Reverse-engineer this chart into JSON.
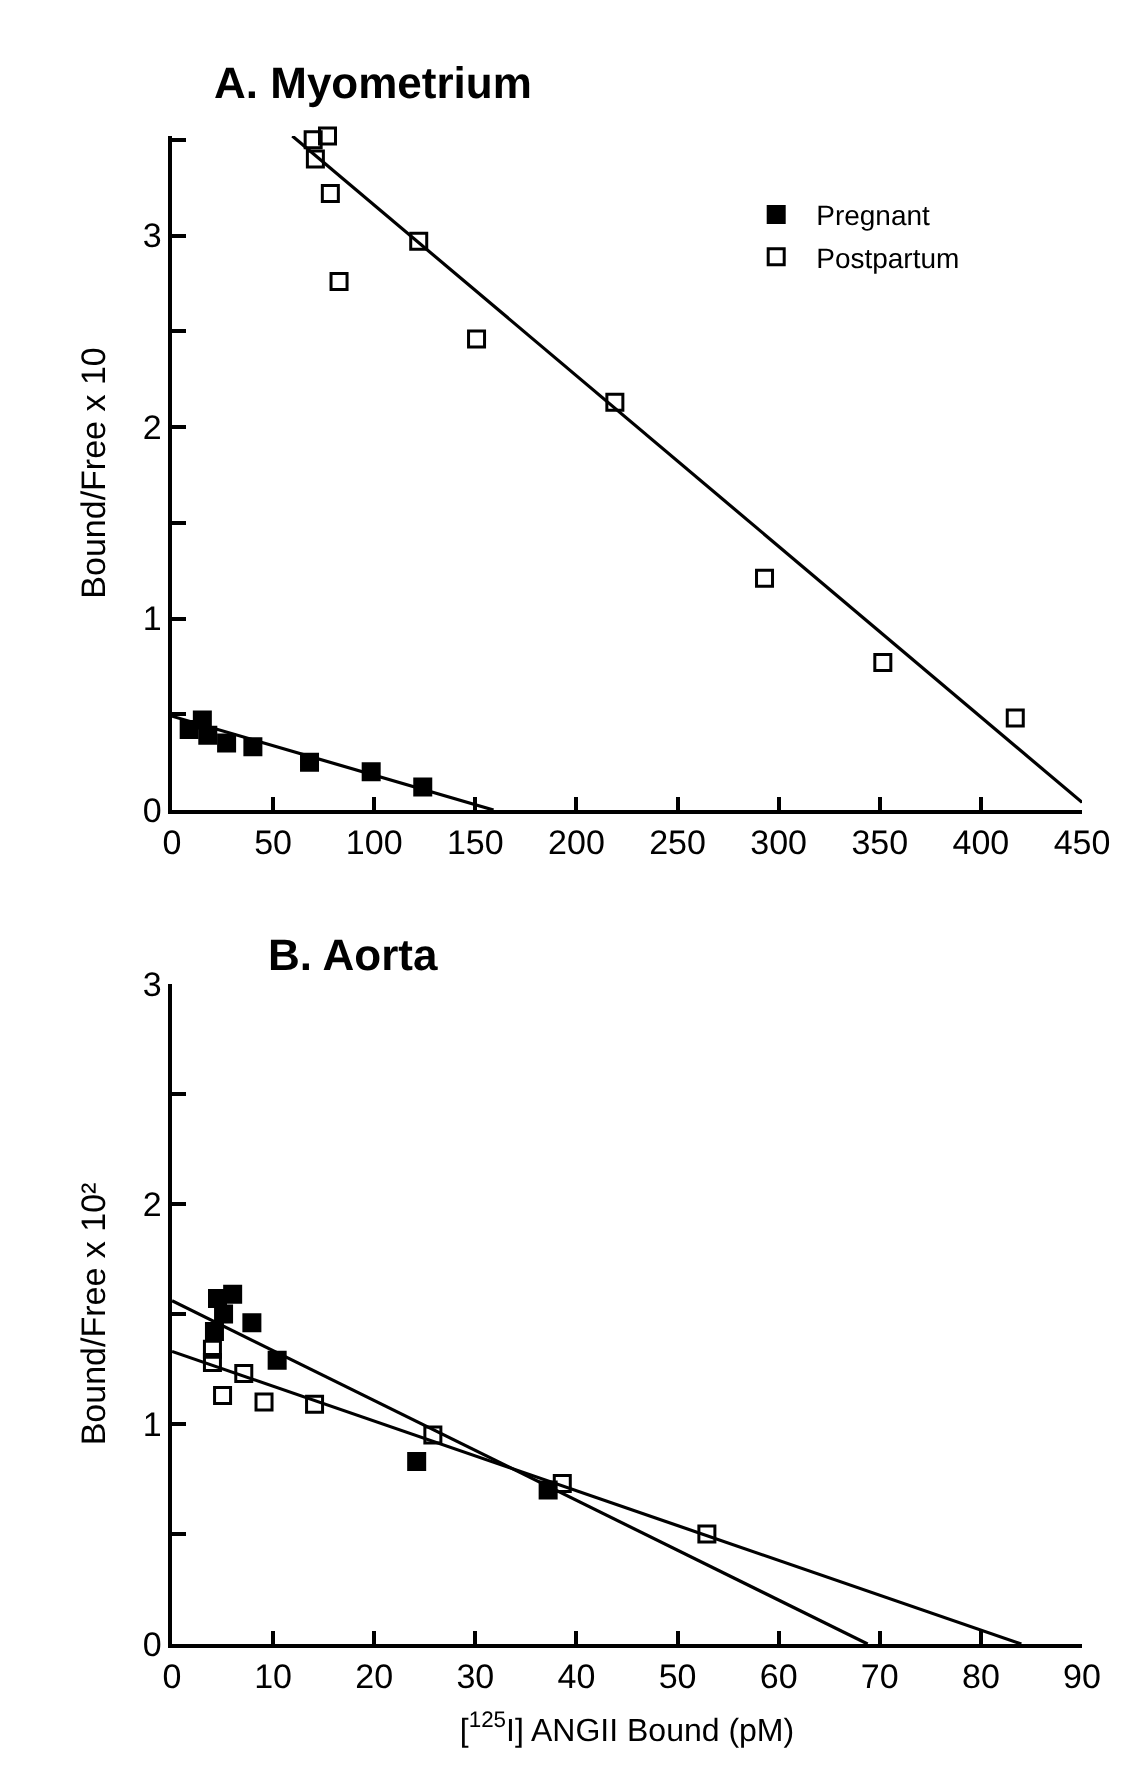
{
  "chart_data": [
    {
      "type": "scatter",
      "title": "A. Myometrium",
      "ylabel": "Bound/Free x 10",
      "xlim": [
        0,
        450
      ],
      "xticks": [
        0,
        50,
        100,
        150,
        200,
        250,
        300,
        350,
        400,
        450
      ],
      "ylim": [
        0,
        3.52
      ],
      "yticks": [
        0,
        {
          "value": 0.5,
          "label": null
        },
        1,
        {
          "value": 1.5,
          "label": null
        },
        2,
        {
          "value": 2.5,
          "label": null
        },
        3,
        {
          "value": 3.5,
          "label": null
        }
      ],
      "legend": "top right",
      "series": [
        {
          "name": "Pregnant",
          "color": "#000000",
          "marker": "square",
          "x": [
            8.5,
            15,
            17.7,
            27,
            40,
            68,
            98.5,
            124
          ],
          "values": [
            0.42,
            0.47,
            0.39,
            0.35,
            0.33,
            0.25,
            0.2,
            0.12
          ]
        },
        {
          "name": "Postpartum",
          "color": "#000000",
          "marker": "square-open",
          "x": [
            69.8,
            76.9,
            70.9,
            78.3,
            82.6,
            122,
            150.6,
            219,
            293,
            351.5,
            417
          ],
          "values": [
            3.5,
            3.52,
            3.4,
            3.22,
            2.76,
            2.97,
            2.46,
            2.13,
            1.21,
            0.77,
            0.48
          ]
        },
        {
          "type": "line",
          "color": "#000000",
          "x": [
            0,
            159
          ],
          "values": [
            0.49,
            0
          ]
        },
        {
          "type": "line",
          "color": "#000000",
          "x": [
            59.5,
            450
          ],
          "values": [
            3.52,
            0.04
          ]
        }
      ]
    },
    {
      "type": "scatter",
      "title": "B. Aorta",
      "xlabel": "[$^{125}$I] ANGII Bound (pM)",
      "ylabel": "Bound/Free x 10²",
      "xlim": [
        0,
        90
      ],
      "xticks": [
        0,
        10,
        20,
        30,
        40,
        50,
        60,
        70,
        80,
        90
      ],
      "ylim": [
        0,
        3
      ],
      "yticks": [
        0,
        {
          "value": 0.5,
          "label": null
        },
        1,
        {
          "value": 1.5,
          "label": null
        },
        2,
        {
          "value": 2.5,
          "label": null
        },
        3
      ],
      "series": [
        {
          "color": "#000000",
          "marker": "square",
          "x": [
            4.2,
            4.5,
            5.1,
            6.0,
            7.9,
            10.4,
            24.2,
            37.2
          ],
          "values": [
            1.42,
            1.57,
            1.5,
            1.59,
            1.46,
            1.29,
            0.83,
            0.7
          ]
        },
        {
          "color": "#000000",
          "marker": "square-open",
          "x": [
            4.0,
            4.0,
            5.0,
            7.1,
            9.1,
            14.1,
            25.8,
            38.6,
            52.9
          ],
          "values": [
            1.34,
            1.28,
            1.13,
            1.23,
            1.1,
            1.09,
            0.95,
            0.73,
            0.5
          ]
        },
        {
          "type": "line",
          "color": "#000000",
          "x": [
            0,
            68.8
          ],
          "values": [
            1.56,
            0
          ]
        },
        {
          "type": "line",
          "color": "#000000",
          "x": [
            0,
            84
          ],
          "values": [
            1.33,
            0
          ]
        }
      ]
    }
  ]
}
